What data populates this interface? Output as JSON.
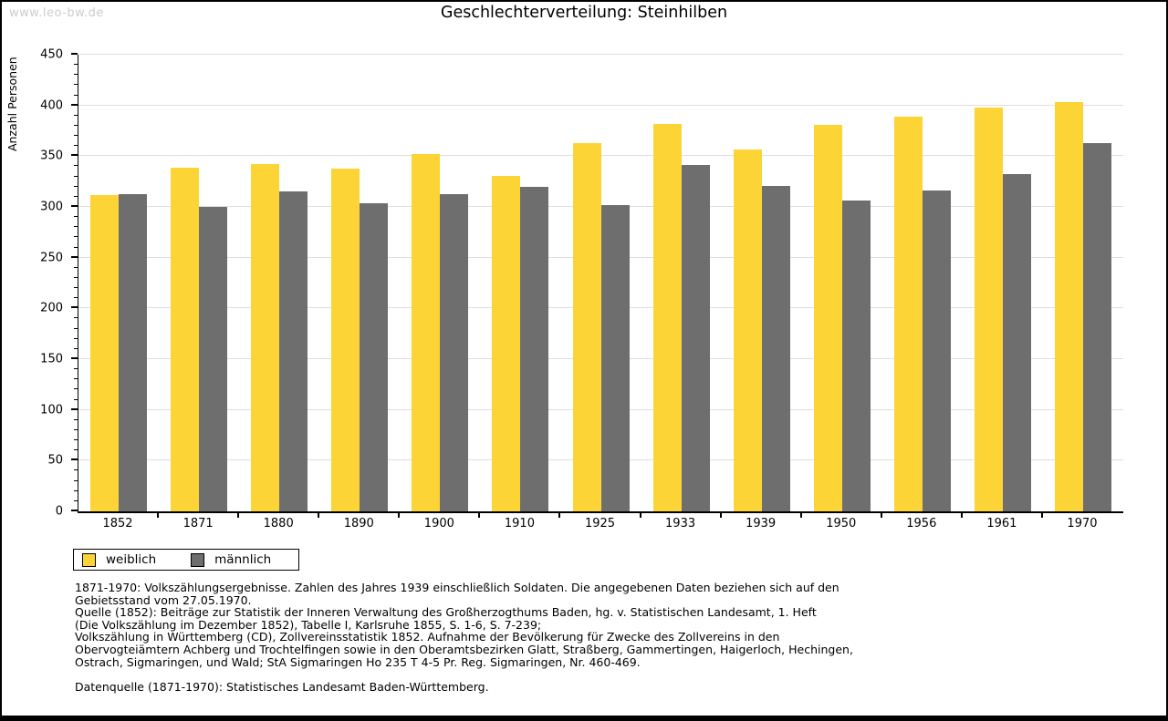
{
  "watermark": "www.leo-bw.de",
  "title": "Geschlechterverteilung: Steinhilben",
  "colors": {
    "weiblich": "#FCD435",
    "maennlich": "#6E6E6E",
    "gridline": "#DEDEDE",
    "watermark": "#CCCCCC"
  },
  "legend": [
    {
      "label": "weiblich",
      "color": "#FCD435"
    },
    {
      "label": "männlich",
      "color": "#6E6E6E"
    }
  ],
  "chart_data": {
    "type": "bar",
    "title": "Geschlechterverteilung: Steinhilben",
    "xlabel": "",
    "ylabel": "Anzahl Personen",
    "categories": [
      "1852",
      "1871",
      "1880",
      "1890",
      "1900",
      "1910",
      "1925",
      "1933",
      "1939",
      "1950",
      "1956",
      "1961",
      "1970"
    ],
    "series": [
      {
        "name": "weiblich",
        "color": "#FCD435",
        "values": [
          312,
          339,
          342,
          338,
          352,
          331,
          363,
          382,
          357,
          381,
          389,
          398,
          403
        ]
      },
      {
        "name": "männlich",
        "color": "#6E6E6E",
        "values": [
          313,
          300,
          315,
          304,
          313,
          320,
          302,
          341,
          321,
          306,
          316,
          332,
          363
        ]
      }
    ],
    "ylim": [
      0,
      450
    ],
    "ytick_step": 50,
    "yminor_step": 10,
    "grid": true,
    "legend_position": "below-left"
  },
  "footnotes": [
    "1871-1970: Volkszählungsergebnisse. Zahlen des Jahres 1939 einschließlich Soldaten. Die angegebenen Daten beziehen sich auf den",
    "Gebietsstand vom 27.05.1970.",
    "Quelle (1852): Beiträge zur Statistik der Inneren Verwaltung des Großherzogthums Baden, hg. v. Statistischen Landesamt, 1. Heft",
    "(Die Volkszählung im Dezember 1852), Tabelle I, Karlsruhe 1855, S. 1-6, S. 7-239;",
    "Volkszählung in Württemberg (CD), Zollvereinsstatistik 1852. Aufnahme der Bevölkerung für Zwecke des Zollvereins in den",
    "Obervogteiämtern Achberg und Trochtelfingen sowie in den Oberamtsbezirken Glatt, Straßberg, Gammertingen, Haigerloch, Hechingen,",
    "Ostrach, Sigmaringen, und Wald; StA Sigmaringen Ho 235 T 4-5 Pr. Reg. Sigmaringen, Nr. 460-469."
  ],
  "datasource": "Datenquelle (1871-1970): Statistisches Landesamt Baden-Württemberg."
}
